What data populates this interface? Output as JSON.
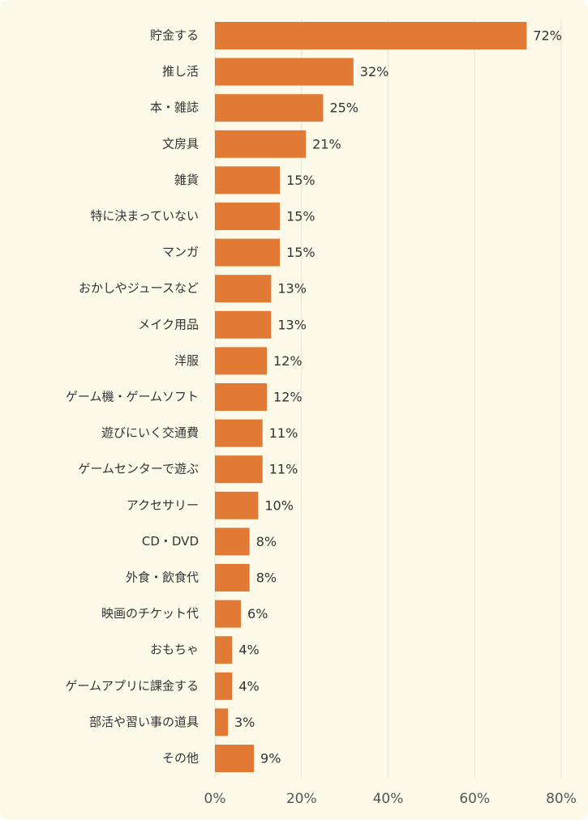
{
  "chart_data": {
    "type": "bar",
    "orientation": "horizontal",
    "categories": [
      "貯金する",
      "推し活",
      "本・雑誌",
      "文房具",
      "雑貨",
      "特に決まっていない",
      "マンガ",
      "おかしやジュースなど",
      "メイク用品",
      "洋服",
      "ゲーム機・ゲームソフト",
      "遊びにいく交通費",
      "ゲームセンターで遊ぶ",
      "アクセサリー",
      "CD・DVD",
      "外食・飲食代",
      "映画のチケット代",
      "おもちゃ",
      "ゲームアプリに課金する",
      "部活や習い事の道具",
      "その他"
    ],
    "values": [
      72,
      32,
      25,
      21,
      15,
      15,
      15,
      13,
      13,
      12,
      12,
      11,
      11,
      10,
      8,
      8,
      6,
      4,
      4,
      3,
      9
    ],
    "value_labels": [
      "72%",
      "32%",
      "25%",
      "21%",
      "15%",
      "15%",
      "15%",
      "13%",
      "13%",
      "12%",
      "12%",
      "11%",
      "11%",
      "10%",
      "8%",
      "8%",
      "6%",
      "4%",
      "4%",
      "3%",
      "9%"
    ],
    "xlim": [
      0,
      80
    ],
    "xticks": [
      "0%",
      "20%",
      "40%",
      "60%",
      "80%"
    ],
    "grid": true,
    "bar_color": "#e07a34",
    "grid_color": "#e6e3cf",
    "background_color": "#fdfaea"
  }
}
